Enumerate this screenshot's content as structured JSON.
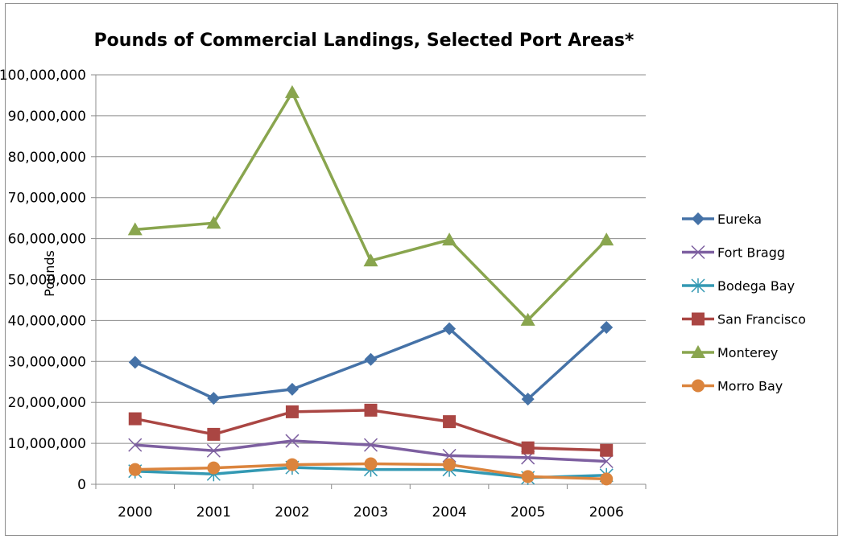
{
  "chart_data": {
    "type": "line",
    "title": "Pounds of Commercial Landings, Selected Port Areas*",
    "xlabel": "",
    "ylabel": "Pounds",
    "categories": [
      "2000",
      "2001",
      "2002",
      "2003",
      "2004",
      "2005",
      "2006"
    ],
    "ylim": [
      0,
      100000000
    ],
    "yticks": [
      0,
      10000000,
      20000000,
      30000000,
      40000000,
      50000000,
      60000000,
      70000000,
      80000000,
      90000000,
      100000000
    ],
    "ytick_labels": [
      "0",
      "10,000,000",
      "20,000,000",
      "30,000,000",
      "40,000,000",
      "50,000,000",
      "60,000,000",
      "70,000,000",
      "80,000,000",
      "90,000,000",
      "100,000,000"
    ],
    "grid": true,
    "legend_position": "right",
    "series": [
      {
        "name": "Eureka",
        "color": "#4572A7",
        "marker": "diamond",
        "values": [
          29800000,
          21000000,
          23200000,
          30500000,
          38000000,
          20800000,
          38300000
        ]
      },
      {
        "name": "Fort Bragg",
        "color": "#7D5FA0",
        "marker": "x",
        "values": [
          9600000,
          8200000,
          10600000,
          9600000,
          7000000,
          6500000,
          5600000
        ]
      },
      {
        "name": "Bodega Bay",
        "color": "#3399B3",
        "marker": "star",
        "values": [
          3200000,
          2500000,
          4100000,
          3600000,
          3600000,
          1600000,
          2200000
        ]
      },
      {
        "name": "San Francisco",
        "color": "#AA4643",
        "marker": "square",
        "values": [
          16000000,
          12200000,
          17700000,
          18100000,
          15300000,
          8900000,
          8300000
        ]
      },
      {
        "name": "Monterey",
        "color": "#89A54E",
        "marker": "triangle",
        "values": [
          62200000,
          63800000,
          95700000,
          54600000,
          59700000,
          40100000,
          59700000
        ]
      },
      {
        "name": "Morro Bay",
        "color": "#DB843D",
        "marker": "circle",
        "values": [
          3600000,
          4000000,
          4800000,
          5000000,
          4800000,
          1900000,
          1300000
        ]
      }
    ]
  }
}
